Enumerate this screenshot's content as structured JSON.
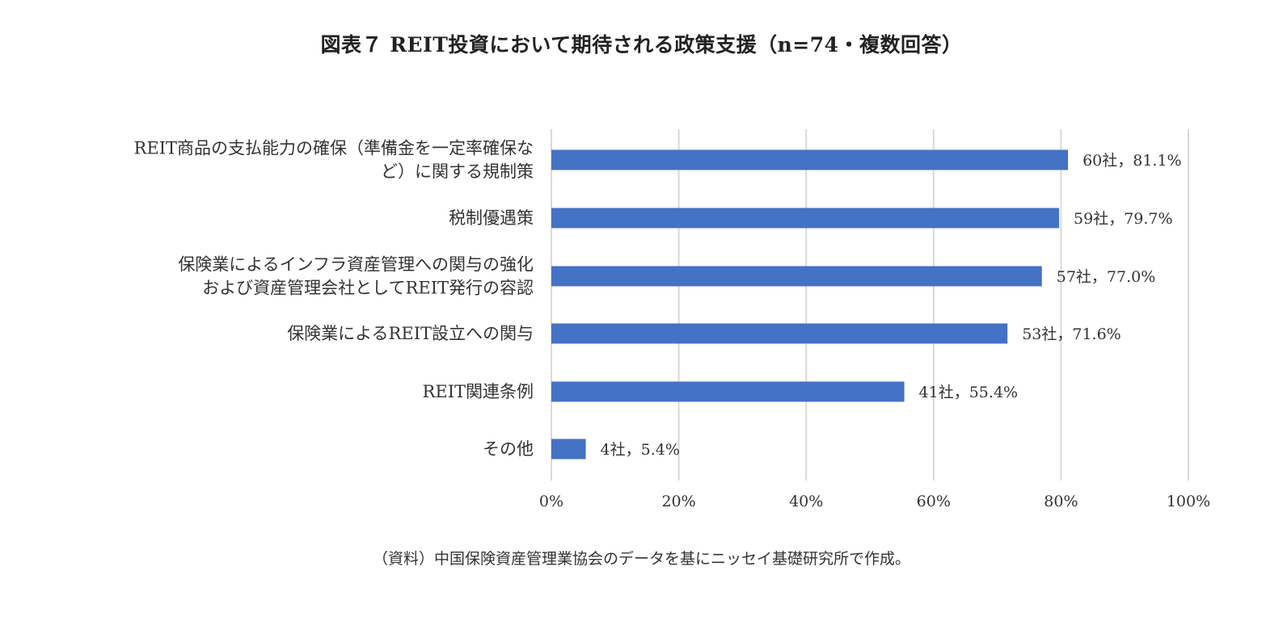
{
  "title": "図表７ REIT投資において期待される政策支援（n=74・複数回答）",
  "source": "（資料）中国保険資産管理業協会のデータを基にニッセイ基礎研究所で作成。",
  "colors": {
    "bar": "#4472C4",
    "grid": "#D9D9D9"
  },
  "chart_data": {
    "type": "bar",
    "orientation": "horizontal",
    "categories": [
      [
        "REIT商品の支払能力の確保（準備金を一定率確保な",
        "ど）に関する規制策"
      ],
      [
        "税制優遇策"
      ],
      [
        "保険業によるインフラ資産管理への関与の強化",
        "および資産管理会社としてREIT発行の容認"
      ],
      [
        "保険業によるREIT設立への関与"
      ],
      [
        "REIT関連条例"
      ],
      [
        "その他"
      ]
    ],
    "values": [
      81.1,
      79.7,
      77.0,
      71.6,
      55.4,
      5.4
    ],
    "data_labels": [
      "60社，81.1%",
      "59社，79.7%",
      "57社，77.0%",
      "53社，71.6%",
      "41社，55.4%",
      "4社，5.4%"
    ],
    "x_ticks": [
      "0%",
      "20%",
      "40%",
      "60%",
      "80%",
      "100%"
    ],
    "xlim": [
      0,
      100
    ],
    "grid": true,
    "legend": "none"
  }
}
